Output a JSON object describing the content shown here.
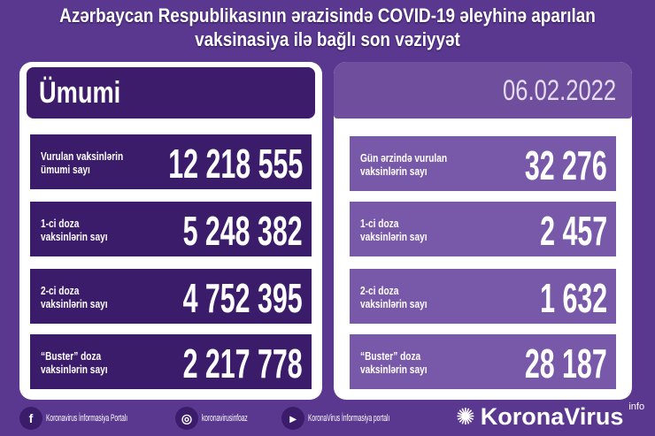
{
  "title": [
    "Azərbaycan Respublikasının ərazisində COVID-19 əleyhinə aparılan",
    "vaksinasiya ilə bağlı son vəziyyət"
  ],
  "left": {
    "header": "Ümumi",
    "rows": [
      {
        "label1": "Vurulan vaksinlərin",
        "label2": "ümumi sayı",
        "value": "12 218 555"
      },
      {
        "label1": "1-ci doza",
        "label2": "vaksinlərin sayı",
        "value": "5 248 382"
      },
      {
        "label1": "2-ci doza",
        "label2": "vaksinlərin sayı",
        "value": "4 752 395"
      },
      {
        "label1": "“Buster” doza",
        "label2": "vaksinlərin sayı",
        "value": "2 217 778"
      }
    ]
  },
  "right": {
    "header": "06.02.2022",
    "rows": [
      {
        "label1": "Gün ərzində vurulan",
        "label2": "vaksinlərin sayı",
        "value": "32 276"
      },
      {
        "label1": "1-ci doza",
        "label2": "vaksinlərin sayı",
        "value": "2 457"
      },
      {
        "label1": "2-ci doza",
        "label2": "vaksinlərin sayı",
        "value": "1 632"
      },
      {
        "label1": "“Buster” doza",
        "label2": "vaksinlərin sayı",
        "value": "28 187"
      }
    ]
  },
  "footer": {
    "facebook": "Koronavirus İnformasiya Portalı",
    "instagram": "koronavirusinfoaz",
    "youtube": "KoronaVirus İnformasiya portalı",
    "logo": "KoronaVirus",
    "logo_sup": "info"
  },
  "colors": {
    "background": "#5b3890",
    "dark_row": "#3a1c6a",
    "light_row": "#7858a8"
  }
}
